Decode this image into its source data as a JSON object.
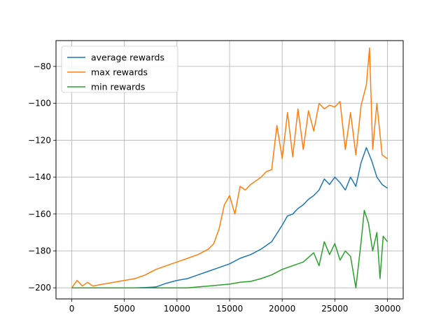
{
  "chart_data": {
    "type": "line",
    "title": "",
    "xlabel": "",
    "ylabel": "",
    "xlim": [
      -1500,
      31500
    ],
    "ylim": [
      -206,
      -66
    ],
    "grid": true,
    "legend_position": "top-left",
    "x_ticks": [
      0,
      5000,
      10000,
      15000,
      20000,
      25000,
      30000
    ],
    "x_tick_labels": [
      "0",
      "5000",
      "10000",
      "15000",
      "20000",
      "25000",
      "30000"
    ],
    "y_ticks": [
      -200,
      -180,
      -160,
      -140,
      -120,
      -100,
      -80
    ],
    "y_tick_labels": [
      "−200",
      "−180",
      "−160",
      "−140",
      "−120",
      "−100",
      "−80"
    ],
    "series": [
      {
        "name": "average rewards",
        "color": "#1f77b4",
        "points": [
          [
            0,
            -200
          ],
          [
            1000,
            -200
          ],
          [
            2000,
            -200
          ],
          [
            3000,
            -200
          ],
          [
            4000,
            -200
          ],
          [
            5000,
            -200
          ],
          [
            6000,
            -200
          ],
          [
            7000,
            -199.8
          ],
          [
            8000,
            -199.5
          ],
          [
            9000,
            -197.5
          ],
          [
            10000,
            -196
          ],
          [
            11000,
            -195
          ],
          [
            12000,
            -193
          ],
          [
            13000,
            -191
          ],
          [
            14000,
            -189
          ],
          [
            15000,
            -187
          ],
          [
            16000,
            -184
          ],
          [
            17000,
            -182
          ],
          [
            18000,
            -179
          ],
          [
            19000,
            -175
          ],
          [
            20000,
            -166
          ],
          [
            20500,
            -161
          ],
          [
            21000,
            -160
          ],
          [
            21500,
            -157
          ],
          [
            22000,
            -155
          ],
          [
            22500,
            -152
          ],
          [
            23000,
            -150
          ],
          [
            23500,
            -147
          ],
          [
            24000,
            -141
          ],
          [
            24500,
            -144
          ],
          [
            25000,
            -140
          ],
          [
            25500,
            -143
          ],
          [
            26000,
            -147
          ],
          [
            26500,
            -140
          ],
          [
            27000,
            -145
          ],
          [
            27500,
            -132
          ],
          [
            28000,
            -124
          ],
          [
            28500,
            -131
          ],
          [
            29000,
            -140
          ],
          [
            29500,
            -144
          ],
          [
            30000,
            -146
          ]
        ]
      },
      {
        "name": "max rewards",
        "color": "#ff7f0e",
        "points": [
          [
            0,
            -200
          ],
          [
            500,
            -196
          ],
          [
            1000,
            -199
          ],
          [
            1500,
            -197
          ],
          [
            2000,
            -199
          ],
          [
            3000,
            -198
          ],
          [
            4000,
            -197
          ],
          [
            5000,
            -196
          ],
          [
            6000,
            -195
          ],
          [
            7000,
            -193
          ],
          [
            8000,
            -190
          ],
          [
            9000,
            -188
          ],
          [
            10000,
            -186
          ],
          [
            11000,
            -184
          ],
          [
            12000,
            -182
          ],
          [
            13000,
            -179
          ],
          [
            13500,
            -176
          ],
          [
            14000,
            -168
          ],
          [
            14500,
            -155
          ],
          [
            15000,
            -150
          ],
          [
            15500,
            -160
          ],
          [
            16000,
            -145
          ],
          [
            16500,
            -147
          ],
          [
            17000,
            -144
          ],
          [
            17500,
            -142
          ],
          [
            18000,
            -140
          ],
          [
            18500,
            -137
          ],
          [
            19000,
            -136
          ],
          [
            19500,
            -112
          ],
          [
            20000,
            -130
          ],
          [
            20500,
            -105
          ],
          [
            21000,
            -129
          ],
          [
            21500,
            -103
          ],
          [
            22000,
            -125
          ],
          [
            22500,
            -104
          ],
          [
            23000,
            -115
          ],
          [
            23500,
            -100
          ],
          [
            24000,
            -103
          ],
          [
            24500,
            -101
          ],
          [
            25000,
            -102
          ],
          [
            25500,
            -99
          ],
          [
            26000,
            -125
          ],
          [
            26500,
            -105
          ],
          [
            27000,
            -128
          ],
          [
            27500,
            -101
          ],
          [
            28000,
            -90
          ],
          [
            28300,
            -70
          ],
          [
            28600,
            -125
          ],
          [
            29000,
            -100
          ],
          [
            29500,
            -128
          ],
          [
            30000,
            -130
          ]
        ]
      },
      {
        "name": "min rewards",
        "color": "#2ca02c",
        "points": [
          [
            0,
            -200
          ],
          [
            2000,
            -200
          ],
          [
            4000,
            -200
          ],
          [
            6000,
            -200
          ],
          [
            8000,
            -200
          ],
          [
            10000,
            -200
          ],
          [
            11000,
            -200
          ],
          [
            12000,
            -199.5
          ],
          [
            13000,
            -199
          ],
          [
            14000,
            -198.5
          ],
          [
            15000,
            -198
          ],
          [
            16000,
            -197
          ],
          [
            17000,
            -196.5
          ],
          [
            18000,
            -195
          ],
          [
            19000,
            -193
          ],
          [
            20000,
            -190
          ],
          [
            21000,
            -188
          ],
          [
            22000,
            -186
          ],
          [
            23000,
            -181
          ],
          [
            23500,
            -188
          ],
          [
            24000,
            -175
          ],
          [
            24500,
            -182
          ],
          [
            25000,
            -176
          ],
          [
            25500,
            -185
          ],
          [
            26000,
            -180
          ],
          [
            26500,
            -183
          ],
          [
            27000,
            -200
          ],
          [
            27500,
            -175
          ],
          [
            27800,
            -158
          ],
          [
            28200,
            -165
          ],
          [
            28600,
            -180
          ],
          [
            29000,
            -170
          ],
          [
            29300,
            -195
          ],
          [
            29600,
            -172
          ],
          [
            30000,
            -175
          ]
        ]
      }
    ]
  }
}
